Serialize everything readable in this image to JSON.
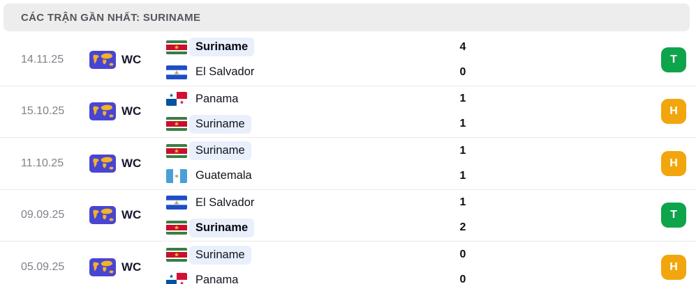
{
  "header": {
    "title": "CÁC TRẬN GẦN NHẤT: SURINAME"
  },
  "colors": {
    "header_bg": "#ededee",
    "header_text": "#54575c",
    "date_text": "#7d8289",
    "divider": "#e9e9ea",
    "highlight_bg": "#e9f0fc",
    "win_badge": "#0ea44c",
    "draw_badge": "#f2a60d",
    "competition_icon_bg": "#4845d2",
    "competition_icon_map": "#f2b32a"
  },
  "result_labels": {
    "win": "T",
    "draw": "H"
  },
  "matches": [
    {
      "date": "14.11.25",
      "competition": "WC",
      "competition_icon": "world-cup-icon",
      "teams": [
        {
          "name": "Suriname",
          "flag": "suriname",
          "score": "4",
          "bold": true,
          "highlighted": true
        },
        {
          "name": "El Salvador",
          "flag": "el-salvador",
          "score": "0",
          "bold": false,
          "highlighted": false
        }
      ],
      "result": "win"
    },
    {
      "date": "15.10.25",
      "competition": "WC",
      "competition_icon": "world-cup-icon",
      "teams": [
        {
          "name": "Panama",
          "flag": "panama",
          "score": "1",
          "bold": false,
          "highlighted": false
        },
        {
          "name": "Suriname",
          "flag": "suriname",
          "score": "1",
          "bold": false,
          "highlighted": true
        }
      ],
      "result": "draw"
    },
    {
      "date": "11.10.25",
      "competition": "WC",
      "competition_icon": "world-cup-icon",
      "teams": [
        {
          "name": "Suriname",
          "flag": "suriname",
          "score": "1",
          "bold": false,
          "highlighted": true
        },
        {
          "name": "Guatemala",
          "flag": "guatemala",
          "score": "1",
          "bold": false,
          "highlighted": false
        }
      ],
      "result": "draw"
    },
    {
      "date": "09.09.25",
      "competition": "WC",
      "competition_icon": "world-cup-icon",
      "teams": [
        {
          "name": "El Salvador",
          "flag": "el-salvador",
          "score": "1",
          "bold": false,
          "highlighted": false
        },
        {
          "name": "Suriname",
          "flag": "suriname",
          "score": "2",
          "bold": true,
          "highlighted": true
        }
      ],
      "result": "win"
    },
    {
      "date": "05.09.25",
      "competition": "WC",
      "competition_icon": "world-cup-icon",
      "teams": [
        {
          "name": "Suriname",
          "flag": "suriname",
          "score": "0",
          "bold": false,
          "highlighted": true
        },
        {
          "name": "Panama",
          "flag": "panama",
          "score": "0",
          "bold": false,
          "highlighted": false
        }
      ],
      "result": "draw"
    }
  ]
}
